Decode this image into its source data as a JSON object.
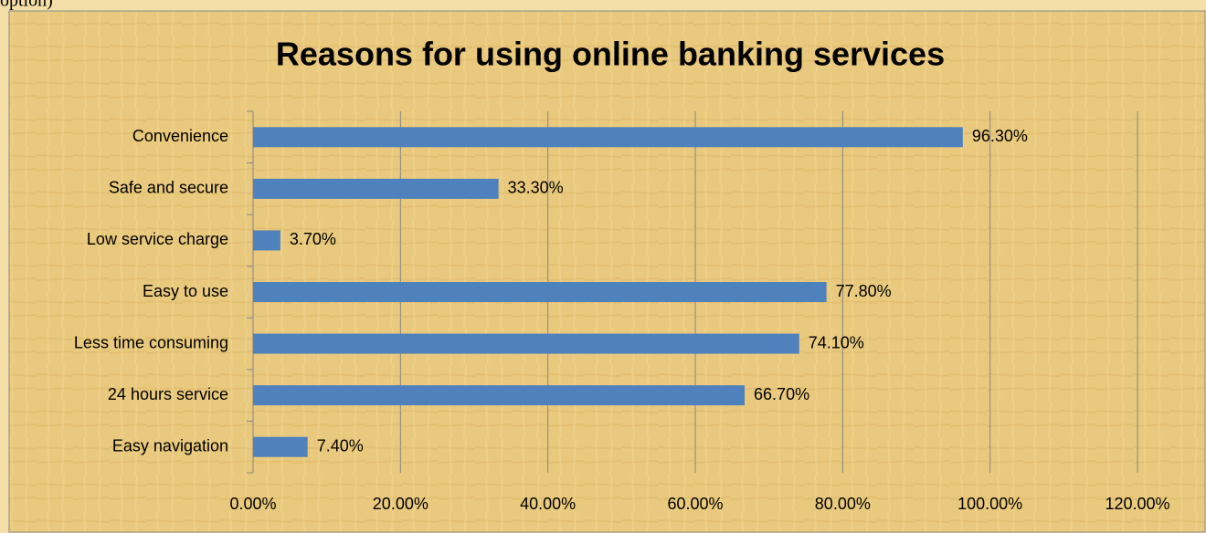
{
  "caption": "option)",
  "chart_data": {
    "type": "bar",
    "orientation": "horizontal",
    "title": "Reasons for using online banking services",
    "categories": [
      "Convenience",
      "Safe and secure",
      "Low service charge",
      "Easy to use",
      "Less time consuming",
      "24 hours service",
      "Easy navigation"
    ],
    "values": [
      96.3,
      33.3,
      3.7,
      77.8,
      74.1,
      66.7,
      7.4
    ],
    "value_labels": [
      "96.30%",
      "33.30%",
      "3.70%",
      "77.80%",
      "74.10%",
      "66.70%",
      "7.40%"
    ],
    "color": "#4f81bd",
    "xlim": [
      0,
      120
    ],
    "xticks": [
      {
        "value": 0,
        "label": "0.00%"
      },
      {
        "value": 20,
        "label": "20.00%"
      },
      {
        "value": 40,
        "label": "40.00%"
      },
      {
        "value": 60,
        "label": "60.00%"
      },
      {
        "value": 80,
        "label": "80.00%"
      },
      {
        "value": 100,
        "label": "100.00%"
      },
      {
        "value": 120,
        "label": "120.00%"
      }
    ],
    "grid": true
  }
}
